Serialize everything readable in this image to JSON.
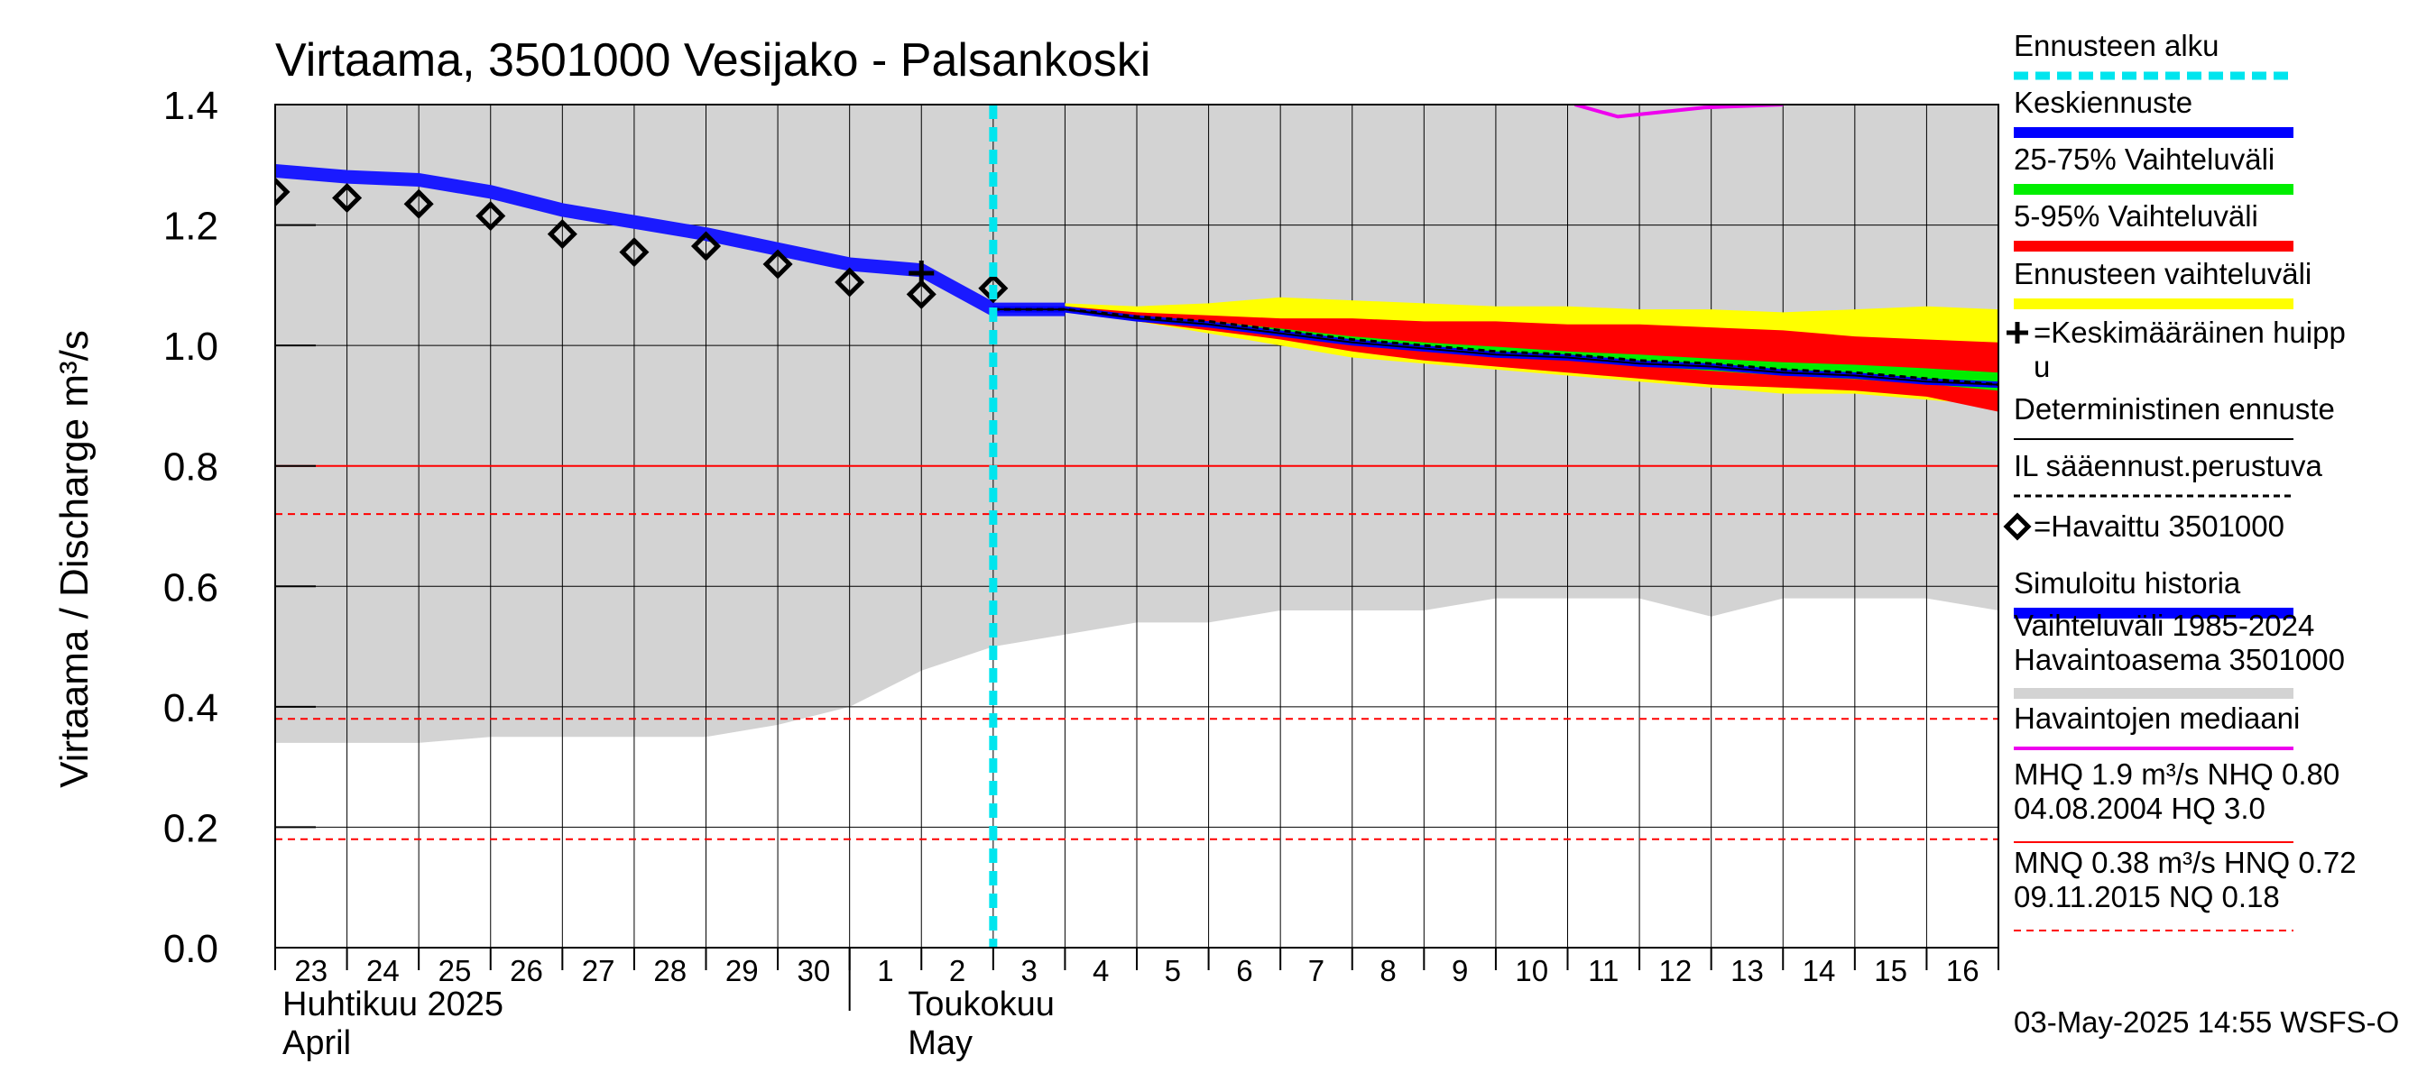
{
  "chart_data": {
    "type": "line",
    "title": "Virtaama, 3501000 Vesijako - Palsankoski",
    "ylabel": "Virtaama / Discharge   m³/s",
    "ylim": [
      0.0,
      1.4
    ],
    "y_ticks": [
      "0.0",
      "0.2",
      "0.4",
      "0.6",
      "0.8",
      "1.0",
      "1.2",
      "1.4"
    ],
    "x_range_days": [
      0,
      24
    ],
    "x_day_labels": [
      "23",
      "24",
      "25",
      "26",
      "27",
      "28",
      "29",
      "30",
      "1",
      "2",
      "3",
      "4",
      "5",
      "6",
      "7",
      "8",
      "9",
      "10",
      "11",
      "12",
      "13",
      "14",
      "15",
      "16"
    ],
    "x_month_labels": [
      {
        "fi": "Huhtikuu  2025",
        "en": "April"
      },
      {
        "fi": "Toukokuu",
        "en": "May"
      }
    ],
    "forecast_start_x": 10.0,
    "history_range": {
      "name": "Vaihteluväli 1985-2024 Havaintoasema 3501000",
      "upper": 1.4,
      "lower_x": [
        0,
        1,
        2,
        3,
        4,
        5,
        6,
        7,
        8,
        9,
        10,
        11,
        12,
        13,
        14,
        15,
        16,
        17,
        18,
        19,
        20,
        21,
        22,
        23,
        24
      ],
      "lower_y": [
        0.34,
        0.34,
        0.34,
        0.35,
        0.35,
        0.35,
        0.35,
        0.37,
        0.4,
        0.46,
        0.5,
        0.52,
        0.54,
        0.54,
        0.56,
        0.56,
        0.56,
        0.58,
        0.58,
        0.58,
        0.55,
        0.58,
        0.58,
        0.58,
        0.56
      ]
    },
    "series": [
      {
        "name": "Simuloitu historia",
        "x": [
          0,
          1,
          2,
          3,
          4,
          5,
          6,
          7,
          8,
          9,
          10,
          11
        ],
        "y": [
          1.29,
          1.28,
          1.275,
          1.255,
          1.225,
          1.205,
          1.185,
          1.16,
          1.135,
          1.125,
          1.06,
          1.06
        ]
      },
      {
        "name": "Keskiennuste",
        "x": [
          10,
          11,
          12,
          13,
          14,
          15,
          16,
          17,
          18,
          19,
          20,
          21,
          22,
          23,
          24
        ],
        "y": [
          1.06,
          1.06,
          1.045,
          1.035,
          1.02,
          1.005,
          0.995,
          0.985,
          0.98,
          0.97,
          0.965,
          0.955,
          0.95,
          0.94,
          0.935
        ]
      },
      {
        "name": "IL sääennust.perustuva",
        "x": [
          10,
          11,
          12,
          13,
          14,
          15,
          16,
          17,
          18,
          19,
          20,
          21,
          22,
          23,
          24
        ],
        "y": [
          1.06,
          1.06,
          1.048,
          1.04,
          1.025,
          1.01,
          1.0,
          0.99,
          0.985,
          0.975,
          0.97,
          0.96,
          0.955,
          0.945,
          0.935
        ]
      },
      {
        "name": "Havaintojen mediaani",
        "x": [
          18.1,
          18.7,
          19.9,
          21.0
        ],
        "y": [
          1.4,
          1.38,
          1.395,
          1.4
        ]
      }
    ],
    "bands": [
      {
        "name": "Ennusteen vaihteluväli",
        "x": [
          10,
          11,
          12,
          13,
          14,
          15,
          16,
          17,
          18,
          19,
          20,
          21,
          22,
          23,
          24
        ],
        "low": [
          1.06,
          1.06,
          1.04,
          1.02,
          1.0,
          0.98,
          0.97,
          0.96,
          0.95,
          0.94,
          0.93,
          0.92,
          0.92,
          0.91,
          0.9
        ],
        "high": [
          1.06,
          1.07,
          1.065,
          1.07,
          1.08,
          1.075,
          1.07,
          1.065,
          1.065,
          1.06,
          1.06,
          1.055,
          1.06,
          1.065,
          1.06
        ]
      },
      {
        "name": "5-95% Vaihteluväli",
        "x": [
          10,
          11,
          12,
          13,
          14,
          15,
          16,
          17,
          18,
          19,
          20,
          21,
          22,
          23,
          24
        ],
        "low": [
          1.06,
          1.06,
          1.04,
          1.025,
          1.01,
          0.99,
          0.975,
          0.965,
          0.955,
          0.945,
          0.935,
          0.93,
          0.925,
          0.915,
          0.89
        ],
        "high": [
          1.06,
          1.065,
          1.055,
          1.05,
          1.045,
          1.045,
          1.04,
          1.04,
          1.035,
          1.035,
          1.03,
          1.025,
          1.015,
          1.01,
          1.005
        ]
      },
      {
        "name": "25-75% Vaihteluväli",
        "x": [
          10,
          11,
          12,
          13,
          14,
          15,
          16,
          17,
          18,
          19,
          20,
          21,
          22,
          23,
          24
        ],
        "low": [
          1.06,
          1.06,
          1.045,
          1.032,
          1.018,
          1.003,
          0.992,
          0.982,
          0.975,
          0.966,
          0.958,
          0.95,
          0.944,
          0.936,
          0.925
        ],
        "high": [
          1.06,
          1.062,
          1.05,
          1.04,
          1.028,
          1.015,
          1.005,
          0.998,
          0.99,
          0.985,
          0.978,
          0.972,
          0.968,
          0.962,
          0.955
        ]
      }
    ],
    "observed": {
      "name": "=Havaittu 3501000",
      "x": [
        0,
        1,
        2,
        3,
        4,
        5,
        6,
        7,
        8,
        9,
        10
      ],
      "y": [
        1.255,
        1.245,
        1.235,
        1.215,
        1.185,
        1.155,
        1.165,
        1.135,
        1.105,
        1.085,
        1.095
      ]
    },
    "peak": {
      "name": "=Keskimääräinen huippu",
      "x": 9.0,
      "y": 1.12
    },
    "reference_lines": [
      {
        "name": "NHQ",
        "value": 0.8,
        "style": "solid",
        "color": "#ff0000"
      },
      {
        "name": "HNQ",
        "value": 0.72,
        "style": "dashed",
        "color": "#ff0000"
      },
      {
        "name": "MNQ",
        "value": 0.38,
        "style": "dashed",
        "color": "#ff0000"
      },
      {
        "name": "NQ",
        "value": 0.18,
        "style": "dashed",
        "color": "#ff0000"
      }
    ],
    "colors": {
      "history_range": "#d3d3d3",
      "forecast_range": "#ffff00",
      "band_5_95": "#ff0000",
      "band_25_75": "#00ee00",
      "mean_forecast": "#0000ff",
      "simulated": "#1a1aff",
      "forecast_start": "#00e5ee",
      "median": "#ee00ee",
      "reference": "#ff0000"
    },
    "legend": {
      "placement": "right",
      "items": [
        {
          "label": "Ennusteen alku",
          "swatch": "cyan-dashed"
        },
        {
          "label": "Keskiennuste",
          "swatch": "blue"
        },
        {
          "label": "25-75% Vaihteluväli",
          "swatch": "green"
        },
        {
          "label": "5-95% Vaihteluväli",
          "swatch": "red"
        },
        {
          "label": "Ennusteen vaihteluväli",
          "swatch": "yellow"
        },
        {
          "label": "=Keskimääräinen huipp",
          "label2": "u",
          "swatch": "plus"
        },
        {
          "label": "Deterministinen ennuste",
          "swatch": "black-thin"
        },
        {
          "label": "IL sääennust.perustuva",
          "swatch": "black-dashed"
        },
        {
          "label": "=Havaittu 3501000",
          "swatch": "diamond"
        },
        {
          "label": "Simuloitu historia",
          "swatch": "blue"
        },
        {
          "label": "Vaihteluväli 1985-2024",
          "label2": " Havaintoasema 3501000",
          "swatch": "grey"
        },
        {
          "label": "Havaintojen mediaani",
          "swatch": "magenta"
        },
        {
          "label": "MHQ  1.9 m³/s NHQ 0.80",
          "label2": "04.08.2004 HQ  3.0",
          "swatch": "red-solid"
        },
        {
          "label": "MNQ 0.38 m³/s HNQ 0.72",
          "label2": "09.11.2015 NQ 0.18",
          "swatch": "red-dashed"
        }
      ]
    },
    "timestamp": "03-May-2025 14:55 WSFS-O"
  }
}
